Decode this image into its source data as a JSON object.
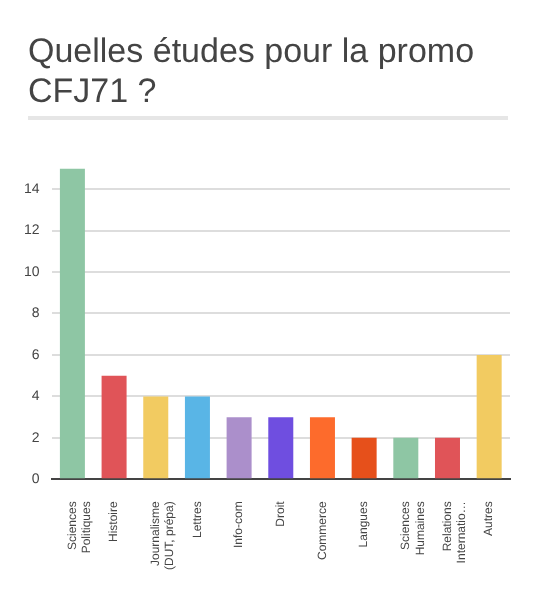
{
  "chart_data": {
    "type": "bar",
    "title": "Quelles études pour la promo CFJ71 ?",
    "categories": [
      "Sciences Politiques",
      "Histoire",
      "Journalisme (DUT, prépa)",
      "Lettres",
      "Info-com",
      "Droit",
      "Commerce",
      "Langues",
      "Sciences Humaines",
      "Relations Internatio…",
      "Autres"
    ],
    "values": [
      15,
      5,
      4,
      4,
      3,
      3,
      3,
      2,
      2,
      2,
      6
    ],
    "colors": [
      "#8ec6a4",
      "#e05458",
      "#f2cb61",
      "#59b5e6",
      "#ab8fcb",
      "#6f4ee0",
      "#fd6b2c",
      "#e6501b",
      "#8ec6a4",
      "#e05458",
      "#f2cb61"
    ],
    "ylim": [
      0,
      15
    ],
    "yticks": [
      0,
      2,
      4,
      6,
      8,
      10,
      12,
      14
    ],
    "grid": "y",
    "legend": false
  }
}
